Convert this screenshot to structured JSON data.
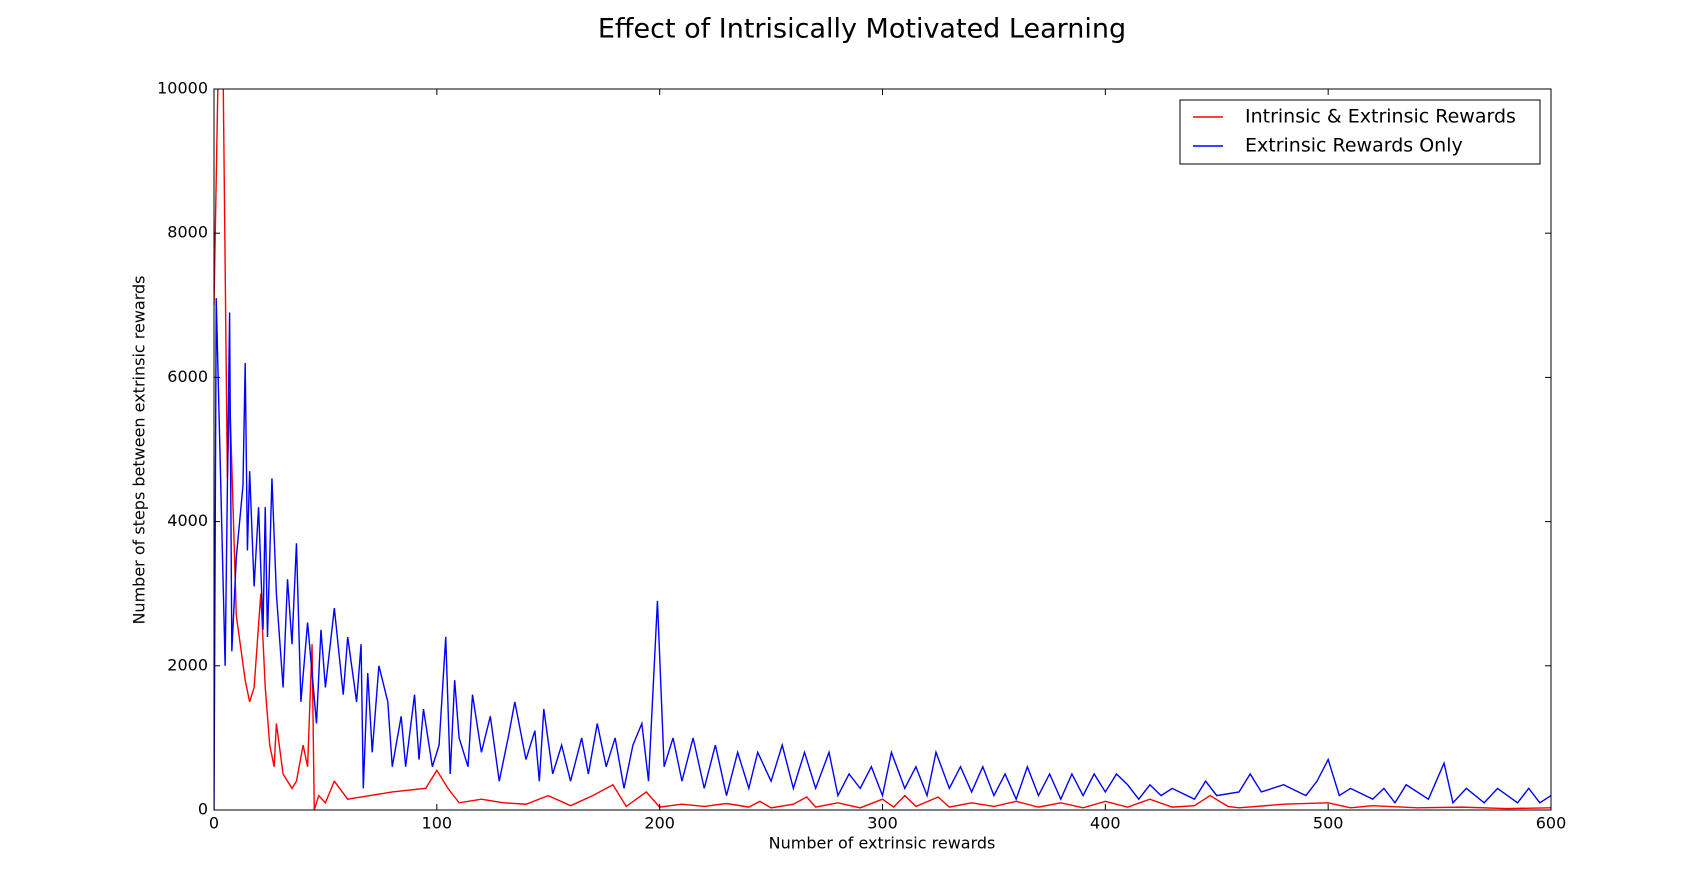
{
  "chart_data": {
    "type": "line",
    "title": "Effect of Intrisically Motivated Learning",
    "x_label": "Number of extrinsic rewards",
    "y_label": "Number of steps between extrinsic rewards",
    "xlim": [
      0,
      600
    ],
    "ylim": [
      0,
      10000
    ],
    "xticks": [
      0,
      100,
      200,
      300,
      400,
      500,
      600
    ],
    "yticks": [
      0,
      2000,
      4000,
      6000,
      8000,
      10000
    ],
    "legend": "upper right",
    "series": [
      {
        "name": "Intrinsic & Extrinsic Rewards",
        "color": "#ff0000",
        "x": [
          0,
          2,
          4,
          6,
          7,
          10,
          14,
          16,
          18,
          21,
          23,
          25,
          27,
          28,
          31,
          35,
          37,
          40,
          42,
          44,
          45,
          47,
          50,
          54,
          60,
          70,
          80,
          95,
          100,
          105,
          110,
          120,
          130,
          140,
          150,
          160,
          170,
          179,
          185,
          194,
          200,
          210,
          220,
          230,
          240,
          245,
          250,
          260,
          266,
          270,
          280,
          290,
          300,
          305,
          310,
          315,
          325,
          330,
          340,
          350,
          360,
          370,
          380,
          390,
          400,
          410,
          420,
          430,
          440,
          447,
          455,
          460,
          480,
          500,
          510,
          520,
          540,
          560,
          580,
          600
        ],
        "values": [
          7000,
          10500,
          10500,
          4600,
          5800,
          2700,
          1800,
          1500,
          1700,
          3000,
          1700,
          900,
          600,
          1200,
          500,
          300,
          400,
          900,
          600,
          2300,
          0,
          200,
          100,
          400,
          150,
          200,
          250,
          300,
          550,
          300,
          100,
          150,
          100,
          80,
          200,
          60,
          200,
          350,
          50,
          250,
          40,
          80,
          50,
          90,
          40,
          120,
          30,
          80,
          180,
          40,
          100,
          30,
          150,
          40,
          200,
          50,
          180,
          40,
          100,
          50,
          120,
          40,
          100,
          30,
          120,
          40,
          150,
          40,
          60,
          200,
          50,
          30,
          80,
          100,
          30,
          60,
          30,
          40,
          20,
          30
        ]
      },
      {
        "name": "Extrinsic Rewards Only",
        "color": "#0000ff",
        "x": [
          0,
          1,
          5,
          7,
          8,
          10,
          13,
          14,
          15,
          16,
          18,
          20,
          22,
          23,
          24,
          26,
          28,
          31,
          33,
          35,
          37,
          39,
          42,
          46,
          48,
          50,
          54,
          58,
          60,
          64,
          66,
          67,
          69,
          71,
          74,
          78,
          80,
          84,
          86,
          90,
          92,
          94,
          98,
          101,
          104,
          106,
          108,
          110,
          114,
          116,
          120,
          124,
          128,
          132,
          135,
          140,
          144,
          146,
          148,
          152,
          156,
          160,
          165,
          168,
          172,
          176,
          180,
          184,
          188,
          192,
          195,
          199,
          202,
          206,
          210,
          215,
          220,
          225,
          230,
          235,
          240,
          244,
          250,
          255,
          260,
          265,
          270,
          276,
          280,
          285,
          290,
          295,
          300,
          304,
          310,
          315,
          320,
          324,
          330,
          335,
          340,
          345,
          350,
          355,
          360,
          365,
          370,
          375,
          380,
          385,
          390,
          395,
          400,
          405,
          410,
          415,
          420,
          425,
          430,
          440,
          445,
          450,
          460,
          465,
          470,
          480,
          490,
          495,
          500,
          505,
          510,
          520,
          525,
          530,
          535,
          545,
          552,
          556,
          562,
          570,
          576,
          585,
          590,
          595,
          600
        ],
        "values": [
          0,
          7100,
          2000,
          6900,
          2200,
          3500,
          4500,
          6200,
          3600,
          4700,
          3100,
          4200,
          2500,
          4200,
          2400,
          4600,
          3000,
          1700,
          3200,
          2300,
          3700,
          1500,
          2600,
          1200,
          2500,
          1700,
          2800,
          1600,
          2400,
          1500,
          2300,
          300,
          1900,
          800,
          2000,
          1500,
          600,
          1300,
          600,
          1600,
          700,
          1400,
          600,
          900,
          2400,
          500,
          1800,
          1000,
          600,
          1600,
          800,
          1300,
          400,
          1000,
          1500,
          700,
          1100,
          400,
          1400,
          500,
          900,
          400,
          1000,
          500,
          1200,
          600,
          1000,
          300,
          900,
          1200,
          400,
          2900,
          600,
          1000,
          400,
          1000,
          300,
          900,
          200,
          800,
          300,
          800,
          400,
          900,
          300,
          800,
          300,
          800,
          200,
          500,
          300,
          600,
          200,
          800,
          300,
          600,
          200,
          800,
          300,
          600,
          250,
          600,
          200,
          500,
          150,
          600,
          200,
          500,
          150,
          500,
          200,
          500,
          250,
          500,
          350,
          150,
          350,
          200,
          300,
          150,
          400,
          200,
          250,
          500,
          250,
          350,
          200,
          400,
          700,
          200,
          300,
          150,
          300,
          100,
          350,
          150,
          650,
          100,
          300,
          100,
          300,
          100,
          300,
          100,
          200
        ]
      }
    ]
  }
}
